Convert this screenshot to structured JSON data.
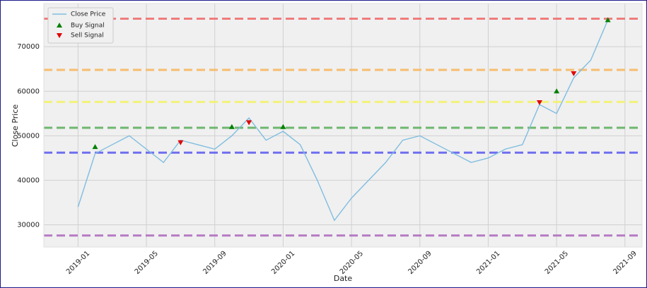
{
  "chart_data": {
    "type": "line",
    "x_label": "Date",
    "y_label": "Close Price",
    "x": [
      "2019-01",
      "2019-02",
      "2019-03",
      "2019-04",
      "2019-05",
      "2019-06",
      "2019-07",
      "2019-08",
      "2019-09",
      "2019-10",
      "2019-11",
      "2019-12",
      "2020-01",
      "2020-02",
      "2020-03",
      "2020-04",
      "2020-05",
      "2020-06",
      "2020-07",
      "2020-08",
      "2020-09",
      "2020-10",
      "2020-11",
      "2020-12",
      "2021-01",
      "2021-02",
      "2021-03",
      "2021-04",
      "2021-05",
      "2021-06",
      "2021-07",
      "2021-08"
    ],
    "series": [
      {
        "name": "Close Price",
        "color": "#7fbde0",
        "values": [
          34000,
          46000,
          48000,
          50000,
          47000,
          44000,
          49000,
          48000,
          47000,
          50000,
          54000,
          49000,
          51000,
          48000,
          40000,
          31000,
          36000,
          40000,
          44000,
          49000,
          50000,
          48000,
          46000,
          44000,
          45000,
          47000,
          48000,
          57000,
          55000,
          63000,
          67000,
          76000
        ]
      }
    ],
    "signals": [
      {
        "name": "Buy Signal",
        "color": "#008000",
        "marker": "up",
        "x": [
          "2019-02",
          "2019-10",
          "2020-01",
          "2021-05",
          "2021-08"
        ],
        "values": [
          47500,
          52000,
          52000,
          60000,
          76000
        ]
      },
      {
        "name": "Sell Signal",
        "color": "#e00000",
        "marker": "down",
        "x": [
          "2019-07",
          "2019-11",
          "2021-04",
          "2021-06"
        ],
        "values": [
          48500,
          53000,
          57500,
          64000
        ]
      }
    ],
    "levels": [
      {
        "value": 76300,
        "color": "#f07070"
      },
      {
        "value": 64800,
        "color": "#f8b860"
      },
      {
        "value": 57600,
        "color": "#f4f46a"
      },
      {
        "value": 51800,
        "color": "#60b060"
      },
      {
        "value": 46200,
        "color": "#6060f0"
      },
      {
        "value": 27600,
        "color": "#b070c0"
      }
    ],
    "xlim": [
      "2018-11",
      "2021-10"
    ],
    "xticks": [
      "2019-01",
      "2019-05",
      "2019-09",
      "2020-01",
      "2020-05",
      "2020-09",
      "2021-01",
      "2021-05",
      "2021-09"
    ],
    "ylim": [
      25000,
      79700
    ],
    "yticks": [
      30000,
      40000,
      50000,
      60000,
      70000
    ],
    "grid": true,
    "legend": "upper left"
  }
}
